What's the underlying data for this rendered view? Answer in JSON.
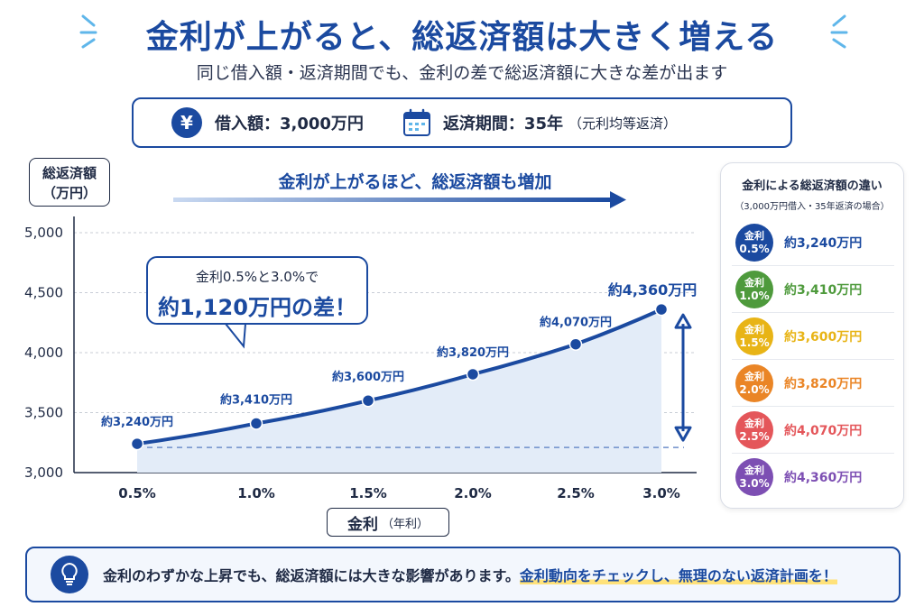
{
  "header": {
    "title": "金利が上がると、総返済額は大きく増える",
    "subtitle": "同じ借入額・返済期間でも、金利の差で総返済額に大きな差が出ます"
  },
  "info": {
    "loan_icon": "yen-icon",
    "loan_symbol": "¥",
    "loan_label": "借入額：3,000万円",
    "period_icon": "calendar-icon",
    "period_label": "返済期間：35年",
    "period_note": "（元利均等返済）"
  },
  "chart_data": {
    "type": "line",
    "title": "金利が上がるほど、総返済額も増加",
    "ylabel_line1": "総返済額",
    "ylabel_line2": "（万円）",
    "xlabel": "金利",
    "xlabel_note": "（年利）",
    "x": [
      "0.5%",
      "1.0%",
      "1.5%",
      "2.0%",
      "2.5%",
      "3.0%"
    ],
    "values": [
      3240,
      3410,
      3600,
      3820,
      4070,
      4360
    ],
    "data_labels": [
      "約3,240万円",
      "約3,410万円",
      "約3,600万円",
      "約3,820万円",
      "約4,070万円",
      "約4,360万円"
    ],
    "yticks": [
      "3,000",
      "3,500",
      "4,000",
      "4,500",
      "5,000"
    ],
    "ytick_values": [
      3000,
      3500,
      4000,
      4500,
      5000
    ],
    "ylim": [
      3000,
      5000
    ],
    "grid": true,
    "line_color": "#1b4aa0",
    "fill_color": "#e3ecf8"
  },
  "callout": {
    "line1": "金利0.5%と3.0%で",
    "line2": "約1,120万円の差！"
  },
  "side_panel": {
    "title": "金利による総返済額の違い",
    "subtitle": "（3,000万円借入・35年返済の場合）",
    "rows": [
      {
        "label": "金利",
        "rate": "0.5%",
        "value": "約3,240万円",
        "color": "#1b4aa0"
      },
      {
        "label": "金利",
        "rate": "1.0%",
        "value": "約3,410万円",
        "color": "#4e9a3c"
      },
      {
        "label": "金利",
        "rate": "1.5%",
        "value": "約3,600万円",
        "color": "#e8b416"
      },
      {
        "label": "金利",
        "rate": "2.0%",
        "value": "約3,820万円",
        "color": "#ea8526"
      },
      {
        "label": "金利",
        "rate": "2.5%",
        "value": "約4,070万円",
        "color": "#e4565a"
      },
      {
        "label": "金利",
        "rate": "3.0%",
        "value": "約4,360万円",
        "color": "#7d4fb3"
      }
    ]
  },
  "footer": {
    "icon": "lightbulb-icon",
    "text": "金利のわずかな上昇でも、総返済額には大きな影響があります。",
    "highlight": "金利動向をチェックし、無理のない返済計画を！"
  }
}
